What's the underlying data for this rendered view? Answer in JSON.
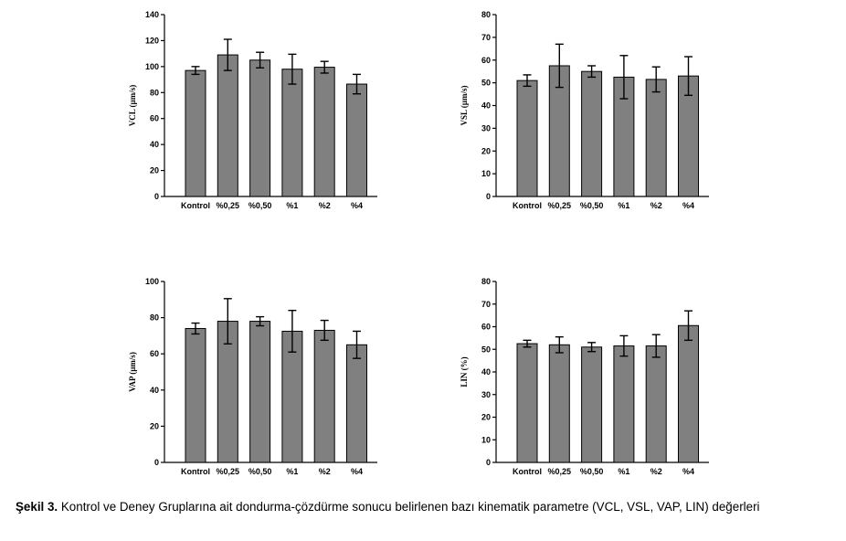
{
  "chart_data": [
    {
      "type": "bar",
      "ylabel": "VCL (µm/s)",
      "categories": [
        "Kontrol",
        "%0,25",
        "%0,50",
        "%1",
        "%2",
        "%4"
      ],
      "values": [
        97,
        109,
        105,
        98,
        99.5,
        86.5
      ],
      "errors": [
        3,
        12,
        6,
        11.5,
        4.5,
        7.5
      ],
      "ylim": [
        0,
        140
      ],
      "yticks": [
        0,
        20,
        40,
        60,
        80,
        100,
        120,
        140
      ]
    },
    {
      "type": "bar",
      "ylabel": "VSL (µm/s)",
      "categories": [
        "Kontrol",
        "%0,25",
        "%0,50",
        "%1",
        "%2",
        "%4"
      ],
      "values": [
        51,
        57.5,
        55,
        52.5,
        51.5,
        53
      ],
      "errors": [
        2.5,
        9.5,
        2.5,
        9.5,
        5.5,
        8.5
      ],
      "ylim": [
        0,
        80
      ],
      "yticks": [
        0,
        10,
        20,
        30,
        40,
        50,
        60,
        70,
        80
      ]
    },
    {
      "type": "bar",
      "ylabel": "VAP (µm/s)",
      "categories": [
        "Kontrol",
        "%0,25",
        "%0,50",
        "%1",
        "%2",
        "%4"
      ],
      "values": [
        74,
        78,
        78,
        72.5,
        73,
        65
      ],
      "errors": [
        3,
        12.5,
        2.5,
        11.5,
        5.5,
        7.5
      ],
      "ylim": [
        0,
        100
      ],
      "yticks": [
        0,
        20,
        40,
        60,
        80,
        100
      ]
    },
    {
      "type": "bar",
      "ylabel": "LIN (%)",
      "categories": [
        "Kontrol",
        "%0,25",
        "%0,50",
        "%1",
        "%2",
        "%4"
      ],
      "values": [
        52.5,
        52,
        51,
        51.5,
        51.5,
        60.5
      ],
      "errors": [
        1.5,
        3.5,
        2,
        4.5,
        5,
        6.5
      ],
      "ylim": [
        0,
        80
      ],
      "yticks": [
        0,
        10,
        20,
        30,
        40,
        50,
        60,
        70,
        80
      ]
    }
  ],
  "caption": {
    "label": "Şekil 3.",
    "text": " Kontrol ve Deney Gruplarına ait dondurma-çözdürme sonucu belirlenen bazı kinematik parametre (VCL, VSL, VAP, LIN) değerleri"
  }
}
